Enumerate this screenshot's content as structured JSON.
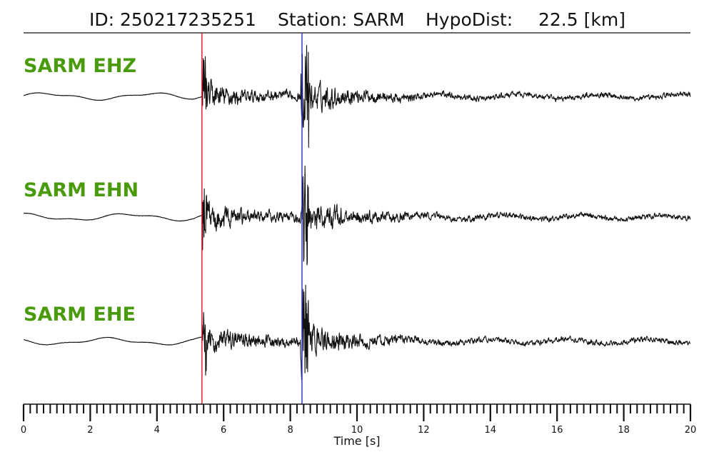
{
  "header": {
    "id_text": "ID: 250217235251",
    "station_text": "Station: SARM",
    "dist_label": "HypoDist:",
    "dist_value": "22.5 [km]"
  },
  "chart_data": {
    "type": "line",
    "xlabel": "Time [s]",
    "xlim": [
      0,
      20
    ],
    "major_ticks": [
      0,
      2,
      4,
      6,
      8,
      10,
      12,
      14,
      16,
      18,
      20
    ],
    "minor_tick_step": 0.2,
    "picks": [
      {
        "phase": "P",
        "time": 5.35,
        "color": "#e0141a"
      },
      {
        "phase": "S",
        "time": 8.35,
        "color": "#2030c8"
      }
    ],
    "trace_color": "#111111",
    "label_color": "#4a9a0e",
    "series": [
      {
        "name": "SARM EHZ"
      },
      {
        "name": "SARM EHN"
      },
      {
        "name": "SARM EHE"
      }
    ]
  }
}
